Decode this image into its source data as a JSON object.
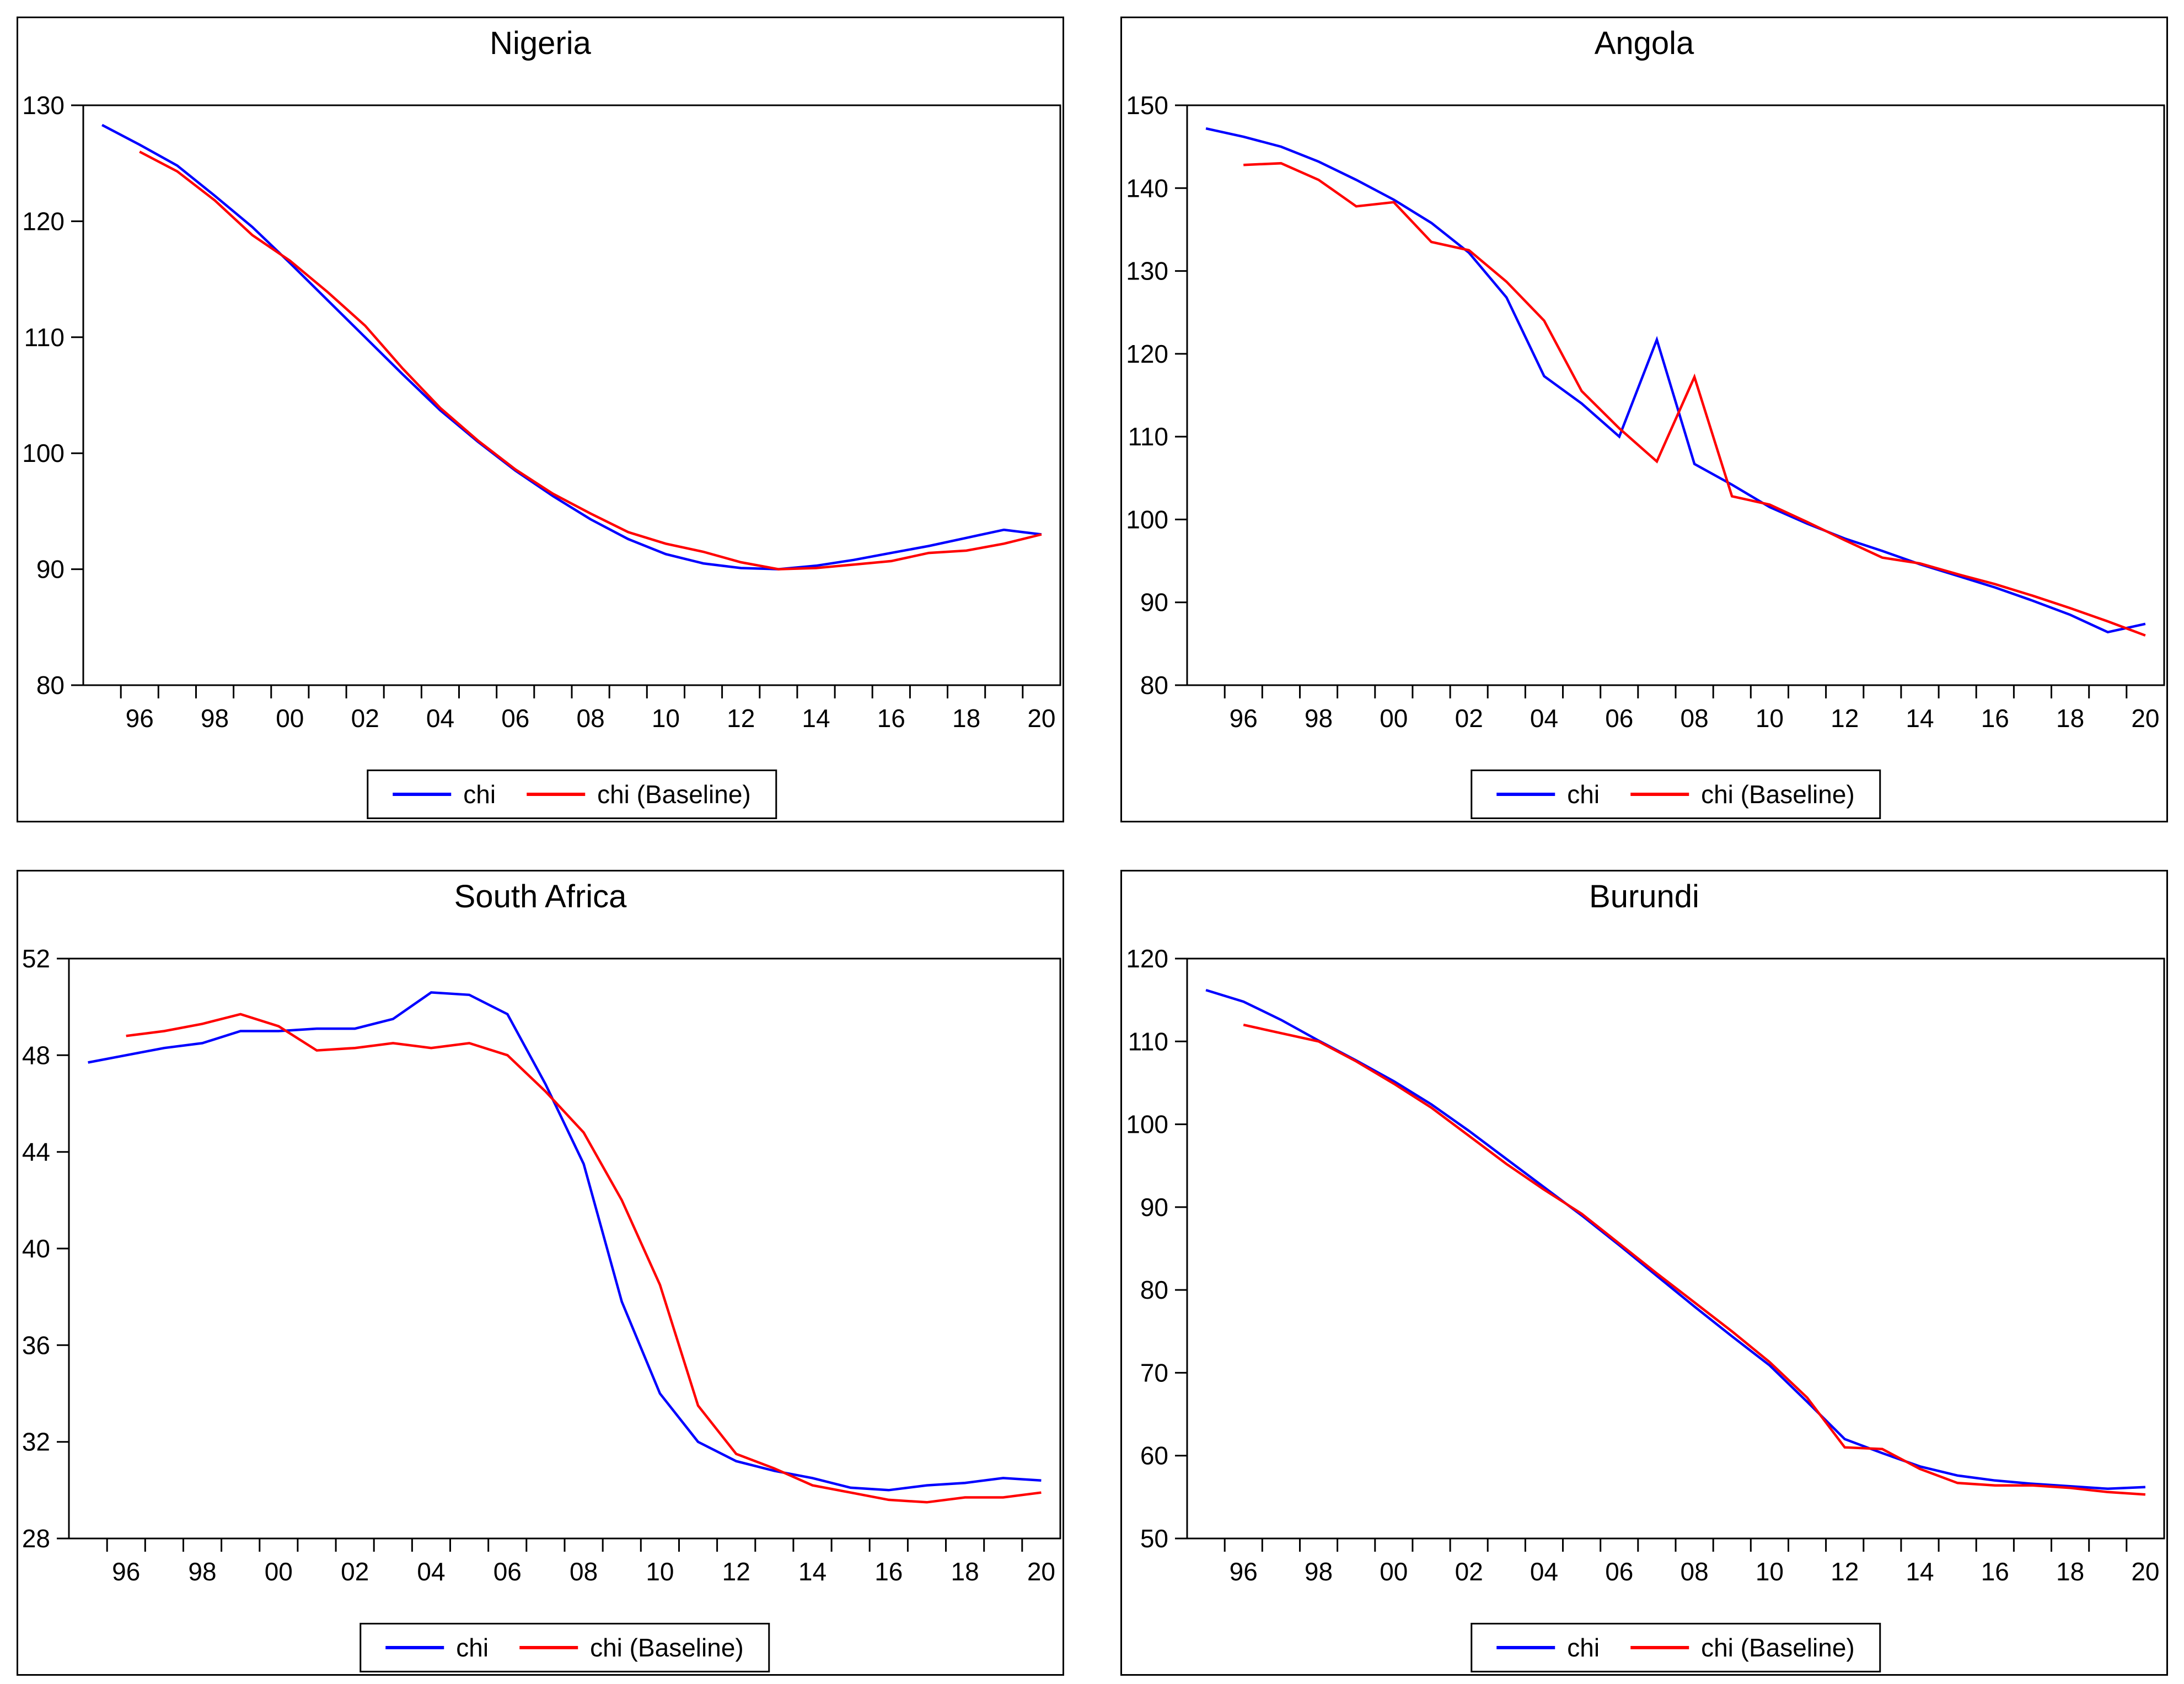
{
  "figure": {
    "background": "#ffffff",
    "axis_color": "#000000",
    "series_colors": {
      "chi": "#0000ff",
      "chi_baseline": "#ff0000"
    }
  },
  "chart_data": [
    {
      "type": "line",
      "title": "Nigeria",
      "legend_position": "bottom-center",
      "grid": false,
      "ylim": [
        80,
        130
      ],
      "yticks": [
        80,
        90,
        100,
        110,
        120,
        130
      ],
      "x_years": [
        1995,
        1996,
        1997,
        1998,
        1999,
        2000,
        2001,
        2002,
        2003,
        2004,
        2005,
        2006,
        2007,
        2008,
        2009,
        2010,
        2011,
        2012,
        2013,
        2014,
        2015,
        2016,
        2017,
        2018,
        2019,
        2020
      ],
      "xticks": {
        "years": [
          1996,
          1998,
          2000,
          2002,
          2004,
          2006,
          2008,
          2010,
          2012,
          2014,
          2016,
          2018,
          2020
        ],
        "labels": [
          "96",
          "98",
          "00",
          "02",
          "04",
          "06",
          "08",
          "10",
          "12",
          "14",
          "16",
          "18",
          "20"
        ]
      },
      "series": [
        {
          "name": "chi",
          "color": "#0000ff",
          "values": [
            128.3,
            126.6,
            124.8,
            122.2,
            119.5,
            116.4,
            113.2,
            110.0,
            106.8,
            103.7,
            101.0,
            98.5,
            96.3,
            94.3,
            92.6,
            91.3,
            90.5,
            90.1,
            90.0,
            90.3,
            90.8,
            91.4,
            92.0,
            92.7,
            93.4,
            93.0
          ]
        },
        {
          "name": "chi (Baseline)",
          "color": "#ff0000",
          "values": [
            null,
            126.0,
            124.3,
            121.8,
            118.8,
            116.6,
            113.9,
            111.0,
            107.3,
            103.9,
            101.1,
            98.6,
            96.5,
            94.8,
            93.2,
            92.2,
            91.5,
            90.6,
            90.0,
            90.1,
            90.4,
            90.7,
            91.4,
            91.6,
            92.2,
            93.0
          ]
        }
      ]
    },
    {
      "type": "line",
      "title": "Angola",
      "legend_position": "bottom-center",
      "grid": false,
      "ylim": [
        80,
        150
      ],
      "yticks": [
        80,
        90,
        100,
        110,
        120,
        130,
        140,
        150
      ],
      "x_years": [
        1995,
        1996,
        1997,
        1998,
        1999,
        2000,
        2001,
        2002,
        2003,
        2004,
        2005,
        2006,
        2007,
        2008,
        2009,
        2010,
        2011,
        2012,
        2013,
        2014,
        2015,
        2016,
        2017,
        2018,
        2019,
        2020
      ],
      "xticks": {
        "years": [
          1996,
          1998,
          2000,
          2002,
          2004,
          2006,
          2008,
          2010,
          2012,
          2014,
          2016,
          2018,
          2020
        ],
        "labels": [
          "96",
          "98",
          "00",
          "02",
          "04",
          "06",
          "08",
          "10",
          "12",
          "14",
          "16",
          "18",
          "20"
        ]
      },
      "series": [
        {
          "name": "chi",
          "color": "#0000ff",
          "values": [
            147.2,
            146.2,
            145.0,
            143.2,
            141.0,
            138.6,
            135.8,
            132.2,
            126.8,
            117.3,
            114.0,
            110.0,
            121.7,
            106.7,
            104.2,
            101.5,
            99.5,
            97.7,
            96.2,
            94.6,
            93.2,
            91.8,
            90.2,
            88.5,
            86.4,
            87.4
          ]
        },
        {
          "name": "chi (Baseline)",
          "color": "#ff0000",
          "values": [
            null,
            142.8,
            143.0,
            141.0,
            137.8,
            138.3,
            133.5,
            132.5,
            128.7,
            124.0,
            115.5,
            111.0,
            107.0,
            117.2,
            102.8,
            101.8,
            99.7,
            97.5,
            95.4,
            94.7,
            93.4,
            92.2,
            90.8,
            89.3,
            87.7,
            86.0
          ]
        }
      ]
    },
    {
      "type": "line",
      "title": "South Africa",
      "legend_position": "bottom-center",
      "grid": false,
      "ylim": [
        28,
        52
      ],
      "yticks": [
        28,
        32,
        36,
        40,
        44,
        48,
        52
      ],
      "x_years": [
        1995,
        1996,
        1997,
        1998,
        1999,
        2000,
        2001,
        2002,
        2003,
        2004,
        2005,
        2006,
        2007,
        2008,
        2009,
        2010,
        2011,
        2012,
        2013,
        2014,
        2015,
        2016,
        2017,
        2018,
        2019,
        2020
      ],
      "xticks": {
        "years": [
          1996,
          1998,
          2000,
          2002,
          2004,
          2006,
          2008,
          2010,
          2012,
          2014,
          2016,
          2018,
          2020
        ],
        "labels": [
          "96",
          "98",
          "00",
          "02",
          "04",
          "06",
          "08",
          "10",
          "12",
          "14",
          "16",
          "18",
          "20"
        ]
      },
      "series": [
        {
          "name": "chi",
          "color": "#0000ff",
          "values": [
            47.7,
            48.0,
            48.3,
            48.5,
            49.0,
            49.0,
            49.1,
            49.1,
            49.5,
            50.6,
            50.5,
            49.7,
            46.8,
            43.5,
            37.8,
            34.0,
            32.0,
            31.2,
            30.8,
            30.5,
            30.1,
            30.0,
            30.2,
            30.3,
            30.5,
            30.4
          ]
        },
        {
          "name": "chi (Baseline)",
          "color": "#ff0000",
          "values": [
            null,
            48.8,
            49.0,
            49.3,
            49.7,
            49.2,
            48.2,
            48.3,
            48.5,
            48.3,
            48.5,
            48.0,
            46.5,
            44.8,
            42.0,
            38.5,
            33.5,
            31.5,
            30.9,
            30.2,
            29.9,
            29.6,
            29.5,
            29.7,
            29.7,
            29.9
          ]
        }
      ]
    },
    {
      "type": "line",
      "title": "Burundi",
      "legend_position": "bottom-center",
      "grid": false,
      "ylim": [
        50,
        120
      ],
      "yticks": [
        50,
        60,
        70,
        80,
        90,
        100,
        110,
        120
      ],
      "x_years": [
        1995,
        1996,
        1997,
        1998,
        1999,
        2000,
        2001,
        2002,
        2003,
        2004,
        2005,
        2006,
        2007,
        2008,
        2009,
        2010,
        2011,
        2012,
        2013,
        2014,
        2015,
        2016,
        2017,
        2018,
        2019,
        2020
      ],
      "xticks": {
        "years": [
          1996,
          1998,
          2000,
          2002,
          2004,
          2006,
          2008,
          2010,
          2012,
          2014,
          2016,
          2018,
          2020
        ],
        "labels": [
          "96",
          "98",
          "00",
          "02",
          "04",
          "06",
          "08",
          "10",
          "12",
          "14",
          "16",
          "18",
          "20"
        ]
      },
      "series": [
        {
          "name": "chi",
          "color": "#0000ff",
          "values": [
            116.2,
            114.8,
            112.6,
            110.1,
            107.7,
            105.2,
            102.4,
            99.2,
            95.8,
            92.4,
            89.0,
            85.4,
            81.7,
            78.0,
            74.4,
            70.9,
            66.5,
            62.0,
            60.3,
            58.7,
            57.6,
            57.0,
            56.6,
            56.3,
            56.0,
            56.2
          ]
        },
        {
          "name": "chi (Baseline)",
          "color": "#ff0000",
          "values": [
            null,
            112.0,
            111.0,
            110.0,
            107.6,
            104.9,
            102.0,
            98.6,
            95.2,
            92.1,
            89.2,
            85.6,
            82.0,
            78.5,
            75.0,
            71.3,
            67.0,
            61.0,
            60.8,
            58.4,
            56.7,
            56.4,
            56.4,
            56.1,
            55.6,
            55.3
          ]
        }
      ]
    }
  ]
}
